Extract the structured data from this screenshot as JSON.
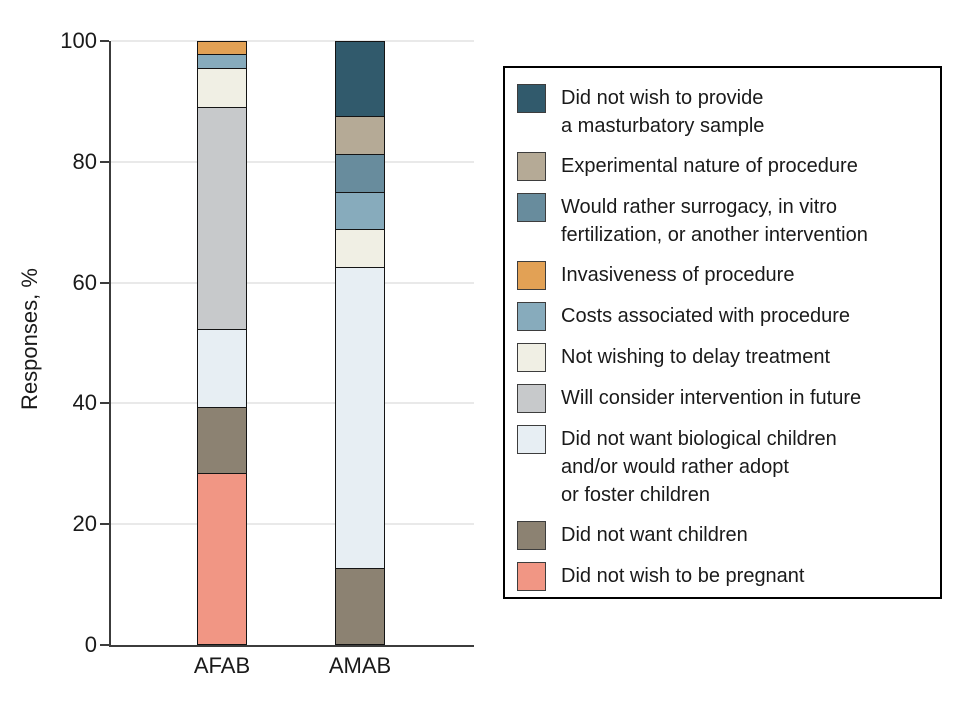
{
  "figure": {
    "ylabel": "Responses, %",
    "xticklabels": {
      "afab": "AFAB",
      "amab": "AMAB"
    }
  },
  "chart_data": {
    "type": "bar",
    "stacked": true,
    "title": "",
    "xlabel": "",
    "ylabel": "Responses, %",
    "ylim": [
      0,
      100
    ],
    "yticks": [
      0,
      20,
      40,
      60,
      80,
      100
    ],
    "grid": true,
    "legend_position": "right",
    "categories": [
      "AFAB",
      "AMAB"
    ],
    "series": [
      {
        "name": "Did not wish to provide a masturbatory sample",
        "lines": [
          "Did not wish to provide",
          "a masturbatory sample"
        ],
        "color": "#315a6c",
        "values": [
          0,
          12.5
        ]
      },
      {
        "name": "Experimental nature of procedure",
        "lines": [
          "Experimental nature of procedure"
        ],
        "color": "#b5aa96",
        "values": [
          0,
          6.25
        ]
      },
      {
        "name": "Would rather surrogacy, in vitro fertilization, or another intervention",
        "lines": [
          "Would rather surrogacy, in vitro",
          "fertilization, or another intervention"
        ],
        "color": "#688c9d",
        "values": [
          0,
          6.25
        ]
      },
      {
        "name": "Invasiveness of procedure",
        "lines": [
          "Invasiveness of procedure"
        ],
        "color": "#e2a155",
        "values": [
          2.2,
          0
        ]
      },
      {
        "name": "Costs associated with procedure",
        "lines": [
          "Costs associated with procedure"
        ],
        "color": "#87abbc",
        "values": [
          2.2,
          6.25
        ]
      },
      {
        "name": "Not wishing to delay treatment",
        "lines": [
          "Not wishing to delay treatment"
        ],
        "color": "#f0efe4",
        "values": [
          6.5,
          6.25
        ]
      },
      {
        "name": "Will consider intervention in future",
        "lines": [
          "Will consider intervention in future"
        ],
        "color": "#c7c9cb",
        "values": [
          37.0,
          0
        ]
      },
      {
        "name": "Did not want biological children and/or would rather adopt or foster children",
        "lines": [
          "Did not want biological children",
          "and/or would rather adopt",
          "or foster children"
        ],
        "color": "#e7eef3",
        "values": [
          13.0,
          50.0
        ]
      },
      {
        "name": "Did not want children",
        "lines": [
          "Did not want children"
        ],
        "color": "#8c8272",
        "values": [
          10.9,
          12.5
        ]
      },
      {
        "name": "Did not wish to be pregnant",
        "lines": [
          "Did not wish to be pregnant"
        ],
        "color": "#f19684",
        "values": [
          28.3,
          0
        ]
      }
    ]
  }
}
